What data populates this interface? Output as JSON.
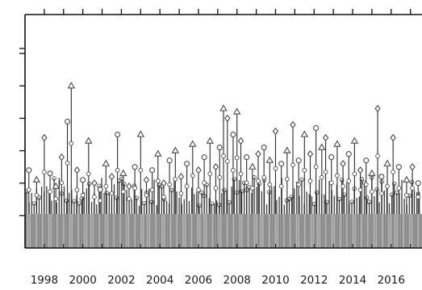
{
  "chart_data": {
    "type": "line",
    "x_ticks": [
      "1998",
      "2000",
      "2002",
      "2004",
      "2006",
      "2008",
      "2010",
      "2012",
      "2014",
      "2016"
    ],
    "xlim": [
      1997.0,
      2017.6
    ],
    "ylim": [
      0,
      7.2
    ],
    "y_ticks": [
      1,
      2,
      3,
      4,
      5,
      6
    ],
    "grid": false,
    "legend": "none",
    "markers": [
      "circle",
      "triangle",
      "diamond"
    ],
    "colors": {
      "axis": "#111111",
      "spike": "#2b2b2b",
      "marker": "#4a4a4a",
      "base_fill": "#9a9a9a",
      "base_dark": "#3a3a3a"
    },
    "base_level": 1.05,
    "series": [
      {
        "x": [
          1997.2,
          1997.6,
          1998.0,
          1998.3,
          1998.6,
          1998.9,
          1999.2,
          1999.4,
          1999.7,
          2000.0,
          2000.3,
          2000.6,
          2000.9,
          2001.2,
          2001.5,
          2001.8,
          2002.1,
          2002.4,
          2002.7,
          2003.0,
          2003.3,
          2003.6,
          2003.9,
          2004.2,
          2004.5,
          2004.8,
          2005.1,
          2005.4,
          2005.7,
          2006.0,
          2006.3,
          2006.6,
          2006.9,
          2007.1,
          2007.3,
          2007.5,
          2007.8,
          2008.0,
          2008.2,
          2008.5,
          2008.8,
          2009.1,
          2009.4,
          2009.7,
          2010.0,
          2010.3,
          2010.6,
          2010.9,
          2011.2,
          2011.5,
          2011.8,
          2012.1,
          2012.4,
          2012.6,
          2012.9,
          2013.2,
          2013.5,
          2013.8,
          2014.1,
          2014.4,
          2014.7,
          2015.0,
          2015.3,
          2015.5,
          2015.8,
          2016.1,
          2016.4,
          2016.8,
          2017.1,
          2017.4
        ],
        "y": [
          2.4,
          2.1,
          3.4,
          2.3,
          1.9,
          2.8,
          3.9,
          5.0,
          2.4,
          2.1,
          3.3,
          2.0,
          1.8,
          2.6,
          2.2,
          3.5,
          2.3,
          1.9,
          2.5,
          3.5,
          2.1,
          2.4,
          2.9,
          2.0,
          2.7,
          3.0,
          2.2,
          2.6,
          3.2,
          2.4,
          2.8,
          3.3,
          2.5,
          3.1,
          4.3,
          4.0,
          3.5,
          4.2,
          3.3,
          2.8,
          2.5,
          2.9,
          3.1,
          2.7,
          3.6,
          2.6,
          3.0,
          3.8,
          2.7,
          3.5,
          2.9,
          3.7,
          3.1,
          3.4,
          2.8,
          3.2,
          2.6,
          2.9,
          3.3,
          2.4,
          2.7,
          2.3,
          4.3,
          2.2,
          2.6,
          3.4,
          2.5,
          2.1,
          2.5,
          2.0
        ]
      }
    ]
  }
}
